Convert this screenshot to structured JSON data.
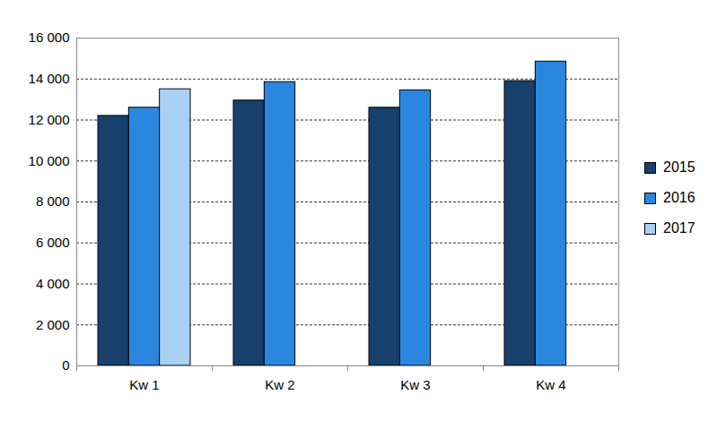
{
  "chart_data": {
    "type": "bar",
    "categories": [
      "Kw 1",
      "Kw 2",
      "Kw 3",
      "Kw 4"
    ],
    "series": [
      {
        "name": "2015",
        "color": "#17406D",
        "values": [
          12200,
          12950,
          12600,
          13900
        ]
      },
      {
        "name": "2016",
        "color": "#2A87E0",
        "values": [
          12600,
          13850,
          13450,
          14850
        ]
      },
      {
        "name": "2017",
        "color": "#A9D1F5",
        "values": [
          13500,
          null,
          null,
          null
        ]
      }
    ],
    "ylim": [
      0,
      16000
    ],
    "yticks": [
      0,
      {
        "value": 2000,
        "label": "2 000"
      },
      {
        "value": 4000,
        "label": "4 000"
      },
      {
        "value": 6000,
        "label": "6 000"
      },
      {
        "value": 8000,
        "label": "8 000"
      },
      {
        "value": 10000,
        "label": "10 000"
      },
      {
        "value": 12000,
        "label": "12 000"
      },
      {
        "value": 14000,
        "label": "14 000"
      },
      {
        "value": 16000,
        "label": "16 000"
      }
    ],
    "grid": true,
    "legend": "right"
  }
}
